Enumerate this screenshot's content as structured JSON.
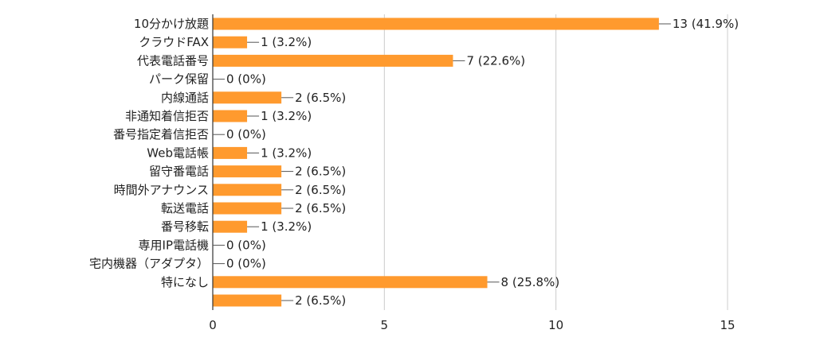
{
  "chart_data": {
    "type": "bar",
    "orientation": "horizontal",
    "title": "",
    "xlabel": "",
    "ylabel": "",
    "xlim": [
      0,
      15
    ],
    "x_ticks": [
      0,
      5,
      10,
      15
    ],
    "grid": true,
    "bar_color": "#ff9a2e",
    "categories": [
      "10分かけ放題",
      "クラウドFAX",
      "代表電話番号",
      "パーク保留",
      "内線通話",
      "非通知着信拒否",
      "番号指定着信拒否",
      "Web電話帳",
      "留守番電話",
      "時間外アナウンス",
      "転送電話",
      "番号移転",
      "専用IP電話機",
      "宅内機器（アダプタ）",
      "特になし",
      ""
    ],
    "values": [
      13,
      1,
      7,
      0,
      2,
      1,
      0,
      1,
      2,
      2,
      2,
      1,
      0,
      0,
      8,
      2
    ],
    "value_labels": [
      "13 (41.9%)",
      "1 (3.2%)",
      "7 (22.6%)",
      "0 (0%)",
      "2 (6.5%)",
      "1 (3.2%)",
      "0 (0%)",
      "1 (3.2%)",
      "2 (6.5%)",
      "2 (6.5%)",
      "2 (6.5%)",
      "1 (3.2%)",
      "0 (0%)",
      "0 (0%)",
      "8 (25.8%)",
      "2 (6.5%)"
    ]
  }
}
